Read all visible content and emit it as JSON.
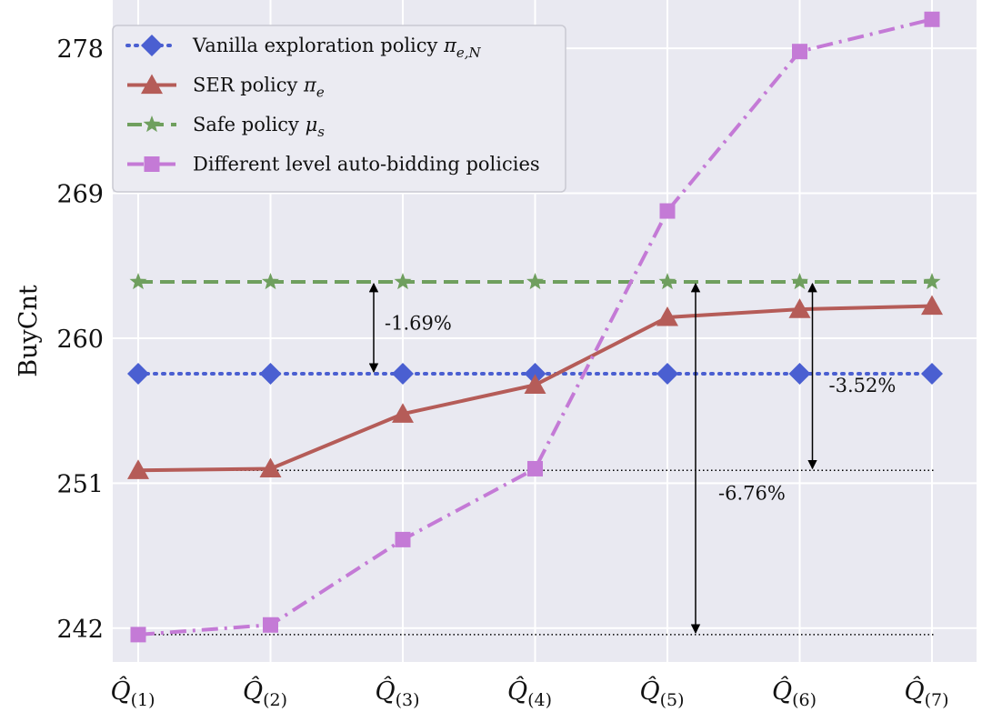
{
  "chart_data": {
    "type": "line",
    "ylabel": "BuyCnt",
    "xlabel": "",
    "categories": [
      "Q̂(1)",
      "Q̂(2)",
      "Q̂(3)",
      "Q̂(4)",
      "Q̂(5)",
      "Q̂(6)",
      "Q̂(7)"
    ],
    "yticks": [
      242,
      251,
      260,
      269,
      278
    ],
    "ylim": [
      239.9,
      281.0
    ],
    "grid": true,
    "legend_position": "top-left",
    "series": [
      {
        "name": "Vanilla exploration policy π_{e,N}",
        "style": "dotted",
        "marker": "diamond",
        "color": "#4a5fd1",
        "values": [
          257.8,
          257.8,
          257.8,
          257.8,
          257.8,
          257.8,
          257.8
        ]
      },
      {
        "name": "SER policy π_e",
        "style": "solid",
        "marker": "triangle",
        "color": "#b55c58",
        "values": [
          251.8,
          251.9,
          255.3,
          257.1,
          261.3,
          261.8,
          262.0
        ]
      },
      {
        "name": "Safe policy μ_s",
        "style": "dashed",
        "marker": "star",
        "color": "#6f9f5e",
        "values": [
          263.5,
          263.5,
          263.5,
          263.5,
          263.5,
          263.5,
          263.5
        ]
      },
      {
        "name": "Different level auto-bidding policies",
        "style": "dashdot",
        "marker": "square",
        "color": "#c47ad6",
        "values": [
          241.6,
          242.2,
          247.5,
          251.9,
          267.9,
          277.8,
          279.8
        ]
      }
    ],
    "annotations": [
      {
        "text": "-1.69%",
        "x_index": 2,
        "from": 263.5,
        "to": 257.8
      },
      {
        "text": "-3.52%",
        "x_index": 5,
        "from": 263.5,
        "to": 251.8
      },
      {
        "text": "-6.76%",
        "x_index": 4,
        "from": 263.5,
        "to": 241.6
      }
    ],
    "reference_lines": [
      251.8,
      241.6
    ]
  }
}
